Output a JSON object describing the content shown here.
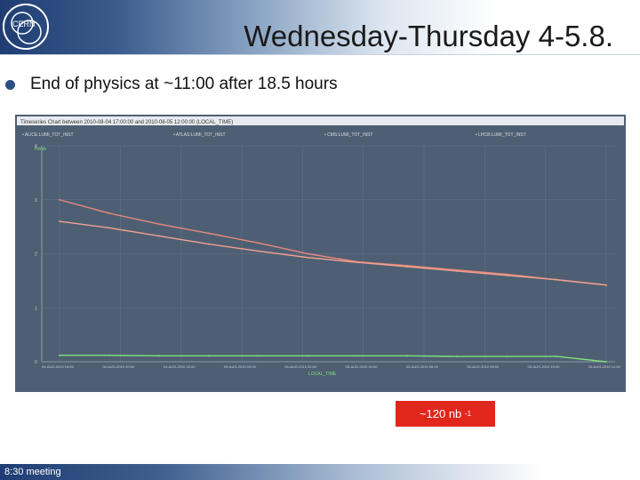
{
  "header": {
    "title": "Wednesday-Thursday 4-5.8.",
    "logo_icon": "cern-logo-icon"
  },
  "bullet": {
    "text": "End of physics at ~11:00 after 18.5 hours"
  },
  "chart_data": {
    "type": "line",
    "title": "Timeseries Chart between 2010-08-04 17:00:00 and 2010-08-05 12:00:00 (LOCAL_TIME)",
    "xlabel": "LOCAL_TIME",
    "ylabel": "Hz/ub",
    "x": [
      "04-AUG-2010 17:51",
      "04-AUG-2010 19:31",
      "04-AUG-2010 21:11",
      "04-AUG-2010 22:51",
      "05-AUG-2010 00:31",
      "05-AUG-2010 02:11",
      "05-AUG-2010 03:51",
      "05-AUG-2010 05:31",
      "05-AUG-2010 07:11",
      "05-AUG-2010 08:51",
      "05-AUG-2010 10:31",
      "05-AUG-2010 12:11"
    ],
    "ylim": [
      0,
      4
    ],
    "yticks": [
      "0",
      "1",
      "2",
      "3",
      "4"
    ],
    "xticks": [
      "04-AUG-2010 18:00",
      "04-AUG-2010 20:00",
      "04-AUG-2010 22:00",
      "05-AUG-2010 00:00",
      "05-AUG-2010 02:00",
      "05-AUG-2010 04:00",
      "05-AUG-2010 06:00",
      "05-AUG-2010 08:00",
      "05-AUG-2010 10:00",
      "05-AUG-2010 12:00"
    ],
    "legend": [
      "ALICE:LUMI_TOT_INST",
      "ATLAS:LUMI_TOT_INST",
      "CMS:LUMI_TOT_INST",
      "LHCB:LUMI_TOT_INST"
    ],
    "series": [
      {
        "name": "ATLAS:LUMI_TOT_INST",
        "color": "#e8897c",
        "values": [
          3.0,
          2.75,
          2.55,
          2.38,
          2.2,
          2.0,
          1.85,
          1.78,
          1.7,
          1.62,
          1.52,
          1.42
        ]
      },
      {
        "name": "CMS:LUMI_TOT_INST",
        "color": "#f0a090",
        "values": [
          2.6,
          2.48,
          2.33,
          2.18,
          2.05,
          1.93,
          1.84,
          1.76,
          1.68,
          1.6,
          1.52,
          1.42
        ]
      },
      {
        "name": "LHCB:LUMI_TOT_INST",
        "color": "#7fe07f",
        "values": [
          0.12,
          0.12,
          0.11,
          0.11,
          0.11,
          0.11,
          0.11,
          0.11,
          0.1,
          0.1,
          0.1,
          0.0
        ]
      }
    ],
    "grid": true,
    "legend_placement": "top"
  },
  "badge": {
    "text": "~120 nb",
    "sup": "-1"
  },
  "footer": {
    "text": "8:30 meeting"
  }
}
